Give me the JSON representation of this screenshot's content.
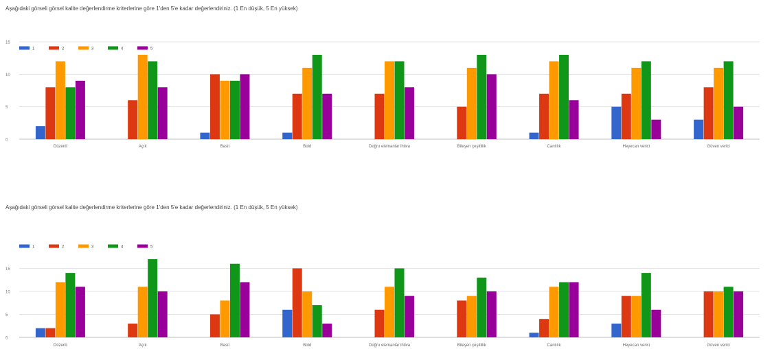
{
  "colors": {
    "s1": "#3366cc",
    "s2": "#dc3912",
    "s3": "#ff9900",
    "s4": "#109618",
    "s5": "#990099",
    "grid": "#e3e3e3",
    "axis": "#bdbdbd"
  },
  "chart_data": [
    {
      "type": "bar",
      "title": "Aşağıdaki görseli görsel kalite değerlendirme kriterlerine göre 1'den 5'e kadar değerlendiriniz. (1 En düşük, 5 En yüksek)",
      "categories": [
        "Düzenli",
        "Açık",
        "Basit",
        "Bold",
        "Doğru elemanlar ihtiva",
        "Bileşen çeşitlilik",
        "Canlılık",
        "Heyecan verici",
        "Güven verici"
      ],
      "series": [
        {
          "name": "1",
          "values": [
            2,
            0,
            1,
            1,
            0,
            0,
            1,
            5,
            3
          ]
        },
        {
          "name": "2",
          "values": [
            8,
            6,
            10,
            7,
            7,
            5,
            7,
            7,
            8
          ]
        },
        {
          "name": "3",
          "values": [
            12,
            13,
            9,
            11,
            12,
            11,
            12,
            11,
            11
          ]
        },
        {
          "name": "4",
          "values": [
            8,
            12,
            9,
            13,
            12,
            13,
            13,
            12,
            12
          ]
        },
        {
          "name": "5",
          "values": [
            9,
            8,
            10,
            7,
            8,
            10,
            6,
            3,
            5
          ]
        }
      ],
      "yticks": [
        0,
        5,
        10,
        15
      ],
      "ylim": [
        0,
        15
      ],
      "legend": "top-left",
      "grid": true
    },
    {
      "type": "bar",
      "title": "Aşağıdaki görseli görsel kalite değerlendirme kriterlerine göre 1'den 5'e kadar değerlendiriniz. (1 En düşük, 5 En yüksek)",
      "categories": [
        "Düzenli",
        "Açık",
        "Basit",
        "Bold",
        "Doğru elemanlar ihtiva",
        "Bileşen çeşitlilik",
        "Canlılık",
        "Heyecan verici",
        "Güven verici"
      ],
      "series": [
        {
          "name": "1",
          "values": [
            2,
            0,
            0,
            6,
            0,
            0,
            1,
            3,
            0
          ]
        },
        {
          "name": "2",
          "values": [
            2,
            3,
            5,
            15,
            6,
            8,
            4,
            9,
            10
          ]
        },
        {
          "name": "3",
          "values": [
            12,
            11,
            8,
            10,
            11,
            9,
            11,
            9,
            10
          ]
        },
        {
          "name": "4",
          "values": [
            14,
            17,
            16,
            7,
            15,
            13,
            12,
            14,
            11
          ]
        },
        {
          "name": "5",
          "values": [
            11,
            10,
            12,
            3,
            9,
            10,
            12,
            6,
            10
          ]
        }
      ],
      "yticks": [
        0,
        5,
        10,
        15
      ],
      "ylim": [
        0,
        17
      ],
      "legend": "top-left",
      "grid": true
    }
  ]
}
